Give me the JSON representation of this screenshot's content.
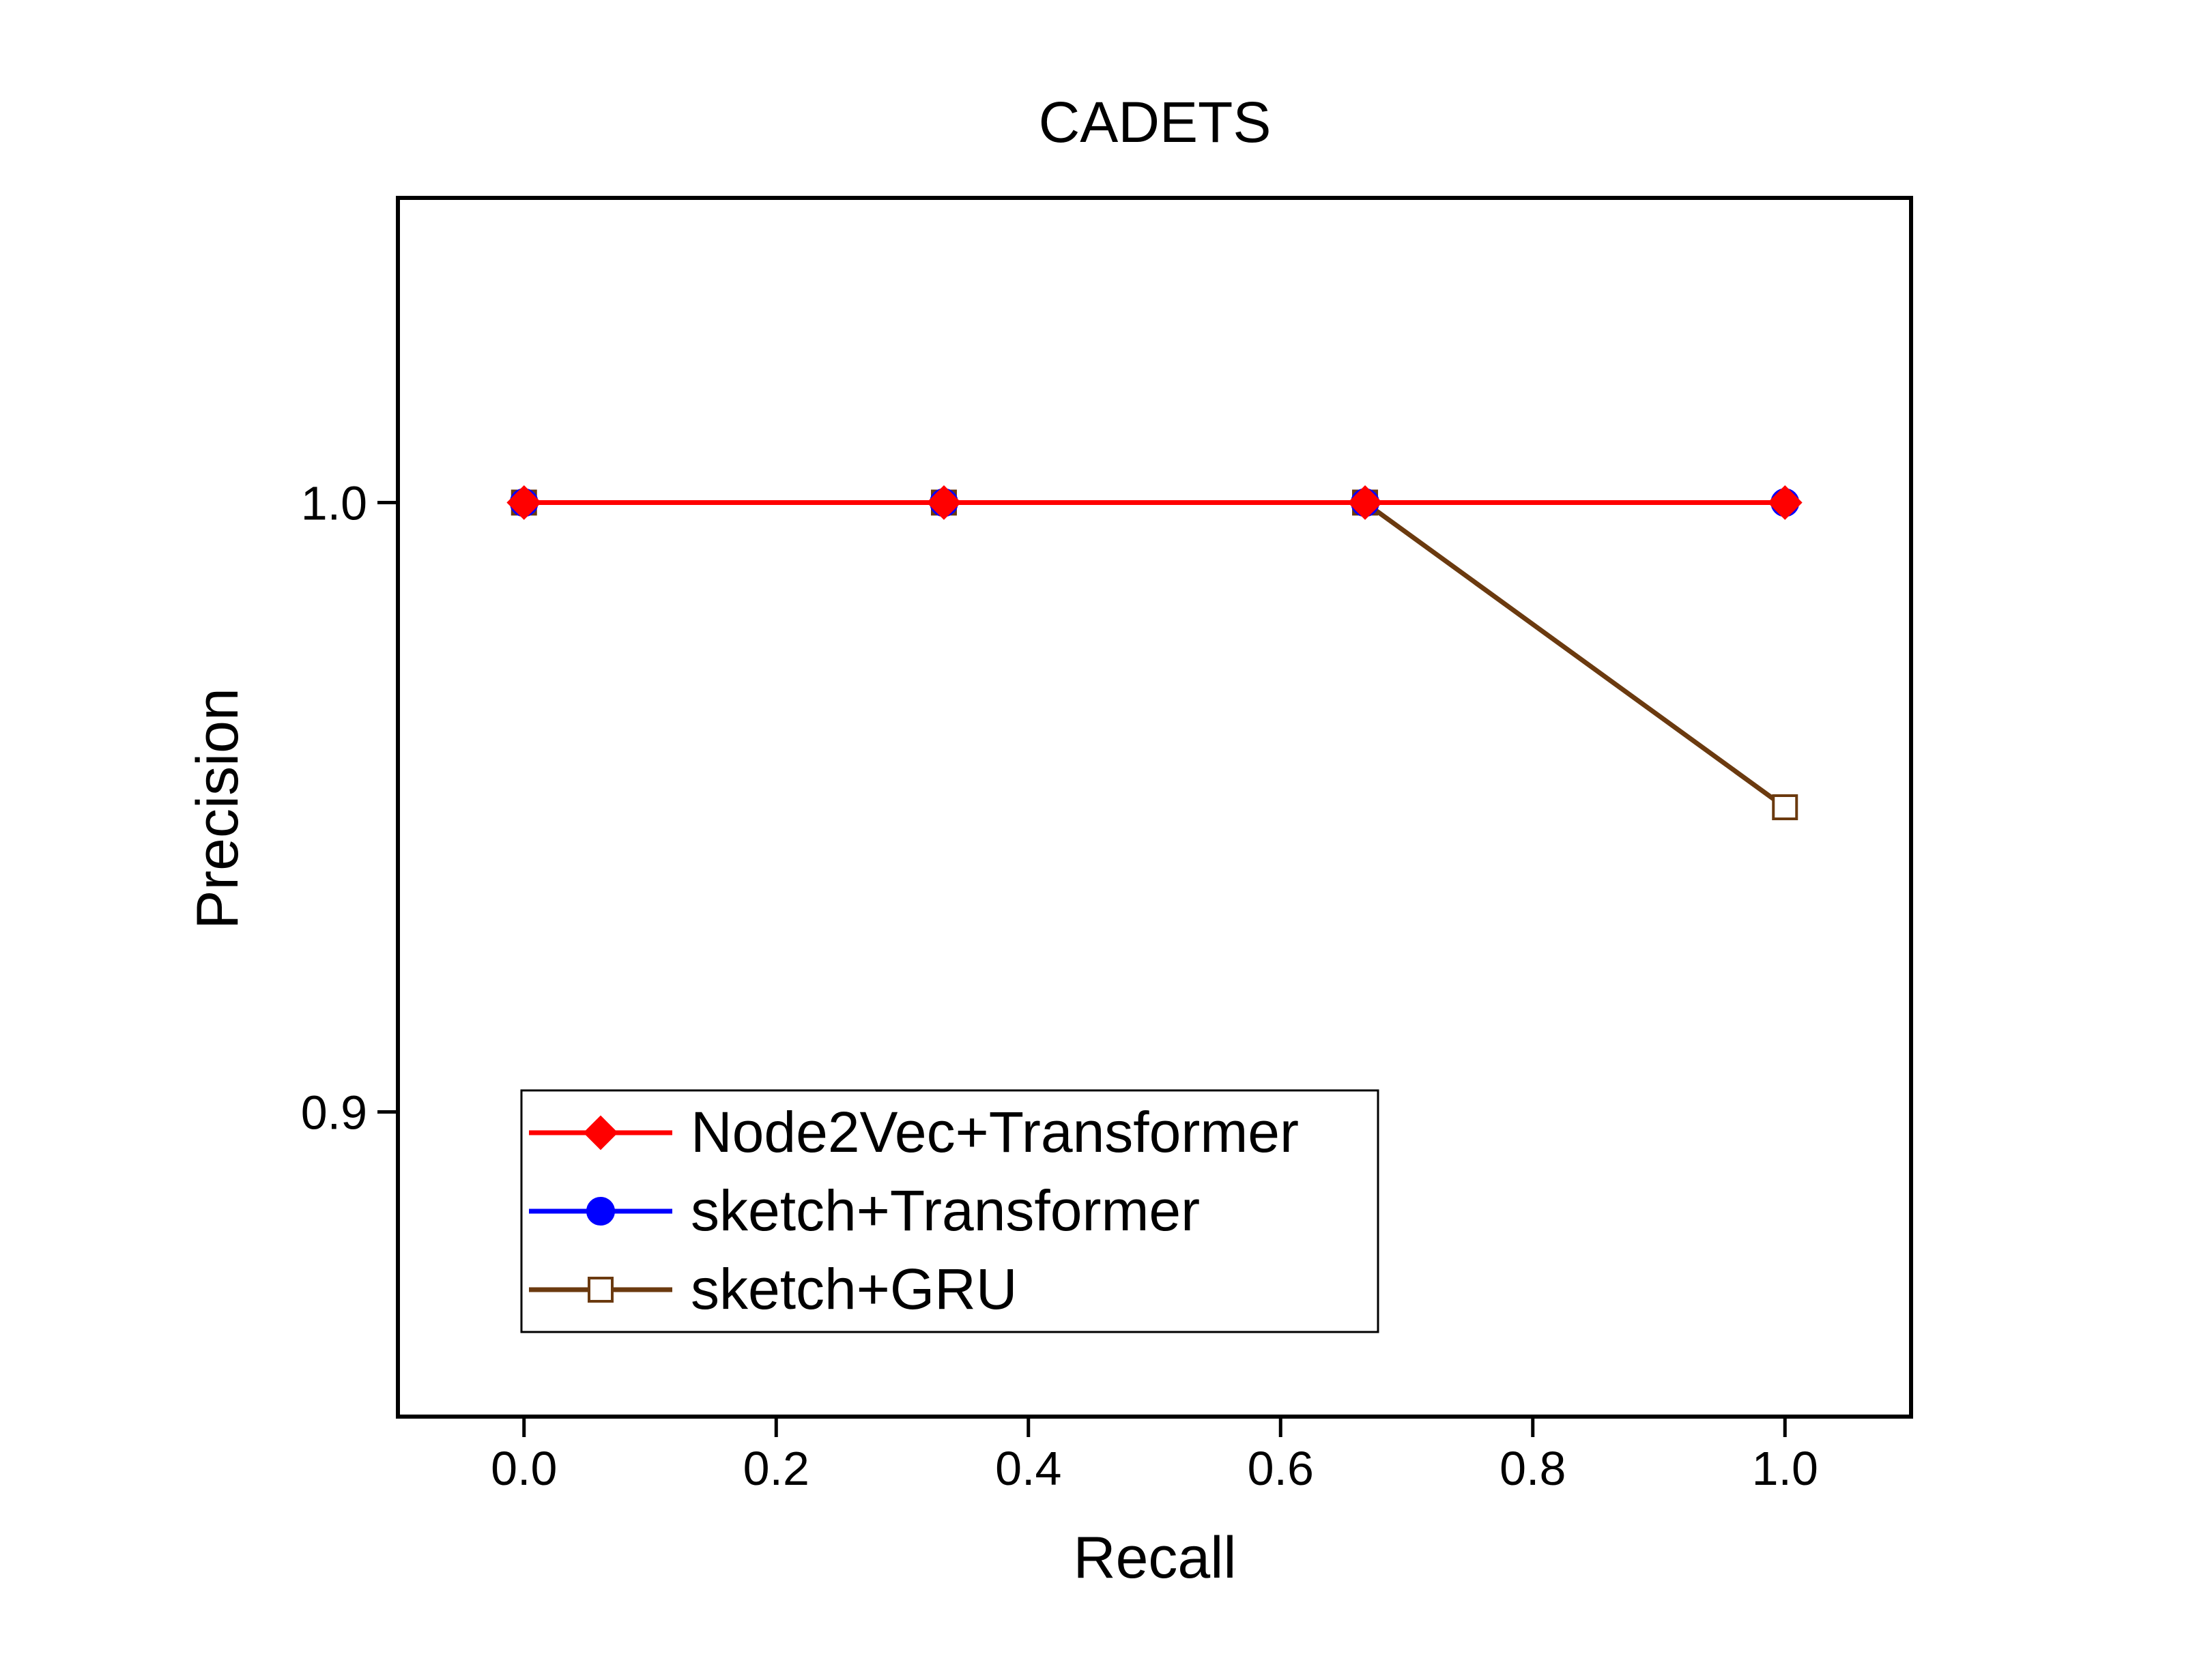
{
  "chart_data": {
    "type": "line",
    "title": "CADETS",
    "xlabel": "Recall",
    "ylabel": "Precision",
    "xlim": [
      -0.1,
      1.1
    ],
    "ylim": [
      0.85,
      1.05
    ],
    "xticks": [
      0.0,
      0.2,
      0.4,
      0.6,
      0.8,
      1.0
    ],
    "xtick_labels": [
      "0.0",
      "0.2",
      "0.4",
      "0.6",
      "0.8",
      "1.0"
    ],
    "yticks": [
      0.9,
      1.0
    ],
    "ytick_labels": [
      "0.9",
      "1.0"
    ],
    "grid": false,
    "legend_position": "bottom-left",
    "series": [
      {
        "name": "sketch+GRU",
        "color": "#6b3a0f",
        "marker": "open-square",
        "x": [
          0.0,
          0.333,
          0.667,
          1.0
        ],
        "y": [
          1.0,
          1.0,
          1.0,
          0.95
        ]
      },
      {
        "name": "sketch+Transformer",
        "color": "#0000ff",
        "marker": "circle",
        "x": [
          0.0,
          0.333,
          0.667,
          1.0
        ],
        "y": [
          1.0,
          1.0,
          1.0,
          1.0
        ]
      },
      {
        "name": "Node2Vec+Transformer",
        "color": "#ff0000",
        "marker": "diamond",
        "x": [
          0.0,
          0.333,
          0.667,
          1.0
        ],
        "y": [
          1.0,
          1.0,
          1.0,
          1.0
        ]
      }
    ],
    "legend_order": [
      "Node2Vec+Transformer",
      "sketch+Transformer",
      "sketch+GRU"
    ]
  }
}
